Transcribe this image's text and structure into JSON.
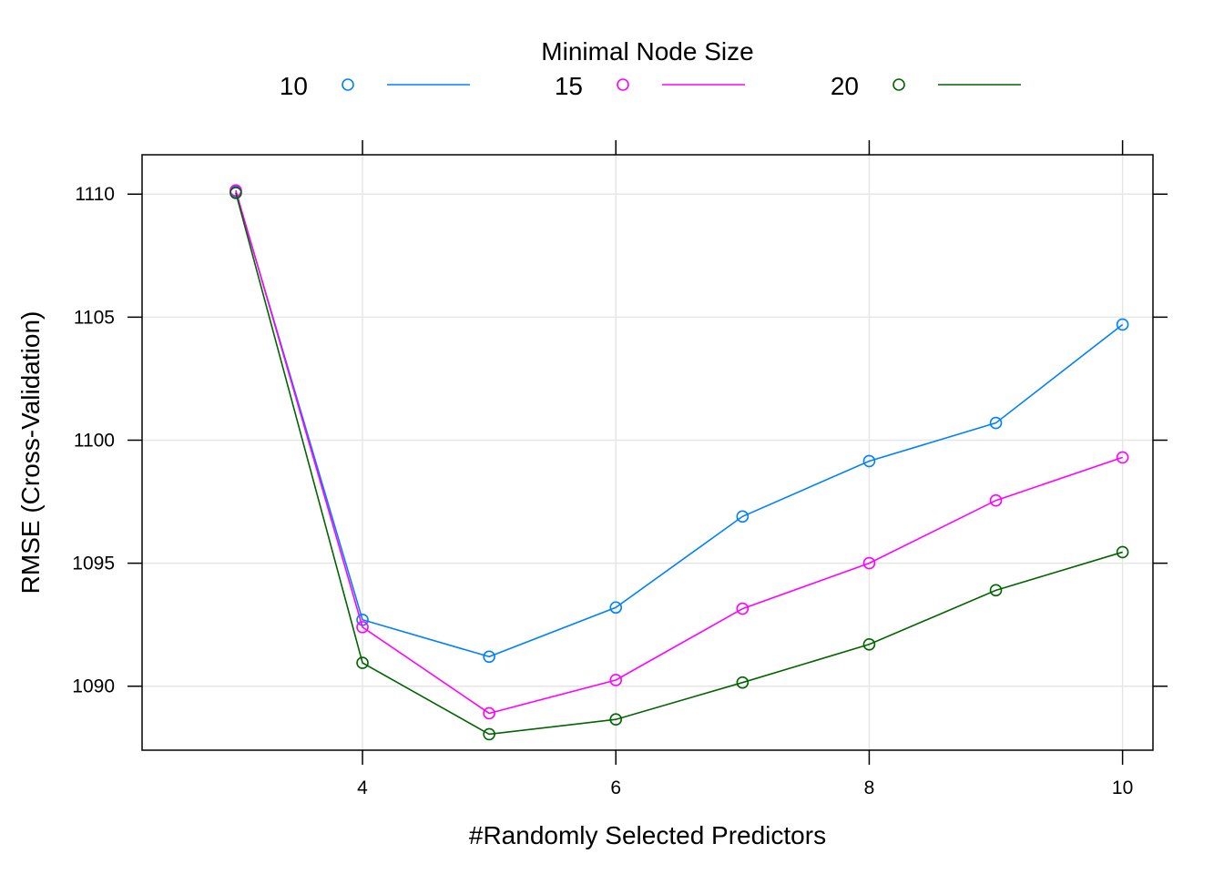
{
  "chart_data": {
    "type": "line",
    "legend_title": "Minimal Node Size",
    "legend_position": "top",
    "xlabel": "#Randomly Selected Predictors",
    "ylabel": "RMSE (Cross-Validation)",
    "x": [
      3,
      4,
      5,
      6,
      7,
      8,
      9,
      10
    ],
    "xlim": [
      2.26,
      10.24
    ],
    "ylim": [
      1087.4,
      1111.6
    ],
    "x_ticks": [
      4,
      6,
      8,
      10
    ],
    "y_ticks": [
      1090,
      1095,
      1100,
      1105,
      1110
    ],
    "x_tick_labels": [
      "4",
      "6",
      "8",
      "10"
    ],
    "y_tick_labels": [
      "1090",
      "1095",
      "1100",
      "1105",
      "1110"
    ],
    "grid": true,
    "series": [
      {
        "name": "10",
        "color": "#0080ff",
        "values": [
          1110.1,
          1092.7,
          1091.2,
          1093.2,
          1096.9,
          1099.15,
          1100.7,
          1104.7
        ]
      },
      {
        "name": "15",
        "color": "#ff00ff",
        "values": [
          1110.15,
          1092.4,
          1088.9,
          1090.25,
          1093.15,
          1095.0,
          1097.55,
          1099.3
        ]
      },
      {
        "name": "20",
        "color": "#006400",
        "values": [
          1110.05,
          1090.95,
          1088.05,
          1088.65,
          1090.15,
          1091.7,
          1093.9,
          1095.45
        ]
      }
    ]
  }
}
